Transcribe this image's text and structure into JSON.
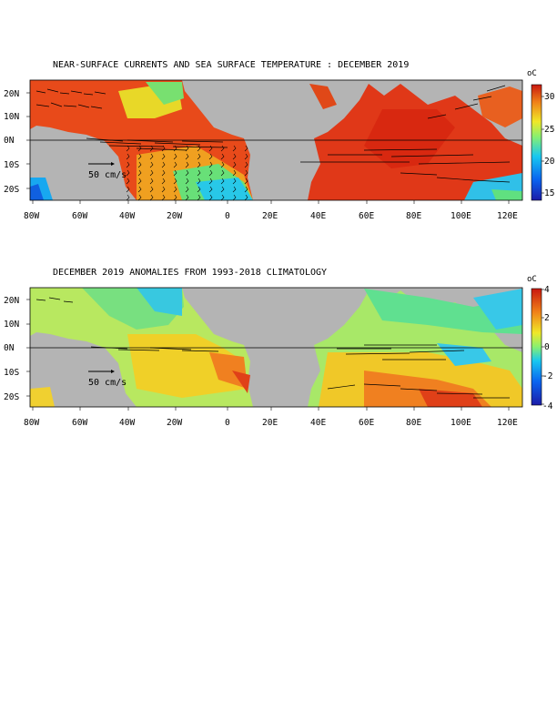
{
  "panels": [
    {
      "id": "sst",
      "title": "NEAR-SURFACE CURRENTS AND SEA SURFACE TEMPERATURE : DECEMBER 2019",
      "unit": "oC",
      "colorbar_ticks": [
        "15",
        "20",
        "25",
        "30"
      ],
      "colorbar_range": [
        14,
        32
      ],
      "scale_label": "50 cm/s"
    },
    {
      "id": "anom",
      "title": "DECEMBER 2019 ANOMALIES FROM 1993-2018 CLIMATOLOGY",
      "unit": "oC",
      "colorbar_ticks": [
        "-4",
        "-2",
        "0",
        "2",
        "4"
      ],
      "colorbar_range": [
        -4,
        4
      ],
      "scale_label": "50 cm/s"
    }
  ],
  "axes": {
    "lat_labels": [
      "20N",
      "10N",
      "0N",
      "10S",
      "20S"
    ],
    "lon_labels": [
      "80W",
      "60W",
      "40W",
      "20W",
      "0",
      "20E",
      "40E",
      "60E",
      "80E",
      "100E",
      "120E"
    ]
  },
  "colors": {
    "land": "#b4b4b4",
    "ocean_cool": "#3a9cf0",
    "ocean_warm": "#e84818",
    "colorbar": [
      "#1c1ca8",
      "#0a64f0",
      "#18c8f0",
      "#88f070",
      "#f0e828",
      "#f08018",
      "#d01810"
    ]
  }
}
